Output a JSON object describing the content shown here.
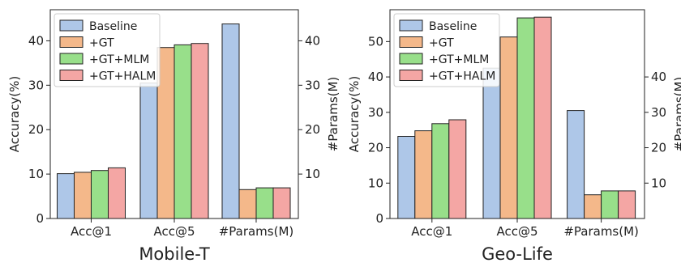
{
  "chart_data": [
    {
      "type": "bar",
      "title": "Mobile-T",
      "categories": [
        "Acc@1",
        "Acc@5",
        "#Params(M)"
      ],
      "ylabel": "Accuracy(%)",
      "y2label": "#Params(M)",
      "ylim": [
        0,
        47
      ],
      "yticks": [
        0,
        10,
        20,
        30,
        40
      ],
      "y2ticks": [
        10,
        20,
        30,
        40
      ],
      "grid": false,
      "legend_position": "upper-left",
      "series": [
        {
          "name": "Baseline",
          "color": "#aec7e8",
          "values": [
            10.1,
            30.5,
            43.8
          ]
        },
        {
          "name": "+GT",
          "color": "#f4b88a",
          "values": [
            10.4,
            38.5,
            6.5
          ]
        },
        {
          "name": "+GT+MLM",
          "color": "#98df8a",
          "values": [
            10.8,
            39.1,
            6.9
          ]
        },
        {
          "name": "+GT+HALM",
          "color": "#f4a6a4",
          "values": [
            11.4,
            39.4,
            6.9
          ]
        }
      ]
    },
    {
      "type": "bar",
      "title": "Geo-Life",
      "categories": [
        "Acc@1",
        "Acc@5",
        "#Params(M)"
      ],
      "ylabel": "Accuracy(%)",
      "y2label": "#Params(M)",
      "ylim": [
        0,
        59
      ],
      "yticks": [
        0,
        10,
        20,
        30,
        40,
        50
      ],
      "y2ticks": [
        10,
        20,
        30,
        40
      ],
      "grid": false,
      "legend_position": "upper-left",
      "series": [
        {
          "name": "Baseline",
          "color": "#aec7e8",
          "values": [
            23.2,
            42.5,
            30.5
          ]
        },
        {
          "name": "+GT",
          "color": "#f4b88a",
          "values": [
            24.8,
            51.3,
            6.7
          ]
        },
        {
          "name": "+GT+MLM",
          "color": "#98df8a",
          "values": [
            26.8,
            56.7,
            7.8
          ]
        },
        {
          "name": "+GT+HALM",
          "color": "#f4a6a4",
          "values": [
            27.9,
            56.9,
            7.8
          ]
        }
      ]
    }
  ]
}
